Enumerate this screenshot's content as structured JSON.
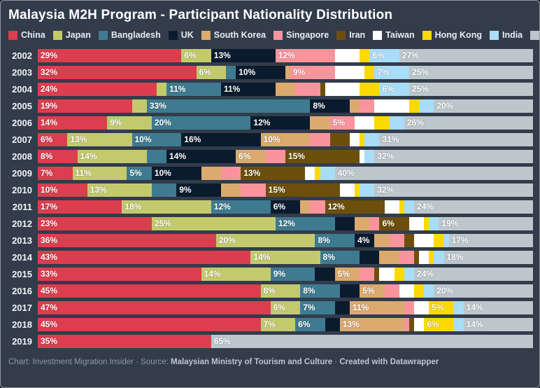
{
  "title": "Malaysia M2H Program - Participant Nationality Distribution",
  "footer": {
    "part1": "Chart: Investment Migration Insider · Source: ",
    "source": "Malaysian Ministry of Tourism and Culture",
    "sep": " · ",
    "credit": "Created with Datawrapper"
  },
  "colors": {
    "background": "#323c4b",
    "title_text": "#ffffff",
    "year_text": "#f2f4f6",
    "footer_text": "#8d98a4"
  },
  "chart_data": {
    "type": "bar",
    "stacked": true,
    "orientation": "horizontal",
    "unit": "%",
    "xlim": [
      0,
      100
    ],
    "grid": false,
    "legend_position": "top",
    "title": "Malaysia M2H Program - Participant Nationality Distribution",
    "series": [
      {
        "name": "China",
        "color": "#dc3e4f"
      },
      {
        "name": "Japan",
        "color": "#c3ca6c"
      },
      {
        "name": "Bangladesh",
        "color": "#3e7b90"
      },
      {
        "name": "UK",
        "color": "#0b1b2e"
      },
      {
        "name": "South Korea",
        "color": "#dcaa6e"
      },
      {
        "name": "Singapore",
        "color": "#f9949c"
      },
      {
        "name": "Iran",
        "color": "#6d4f0d"
      },
      {
        "name": "Taiwan",
        "color": "#ffffff"
      },
      {
        "name": "Hong Kong",
        "color": "#fcd900"
      },
      {
        "name": "India",
        "color": "#a8dcf7"
      },
      {
        "name": "Others",
        "color": "#bcc7cc"
      }
    ],
    "categories": [
      "2002",
      "2003",
      "2004",
      "2005",
      "2006",
      "2007",
      "2008",
      "2009",
      "2010",
      "2011",
      "2012",
      "2013",
      "2014",
      "2015",
      "2016",
      "2017",
      "2018",
      "2019"
    ],
    "rows": [
      {
        "year": "2002",
        "values": [
          29,
          6,
          0,
          13,
          0,
          12,
          0,
          5,
          2,
          6,
          27
        ],
        "labels": [
          "29%",
          "6%",
          "",
          "13%",
          "",
          "12%",
          "",
          "",
          "",
          "6%",
          "27%"
        ]
      },
      {
        "year": "2003",
        "values": [
          32,
          6,
          2,
          10,
          1,
          9,
          0,
          6,
          2,
          7,
          25
        ],
        "labels": [
          "32%",
          "6%",
          "",
          "10%",
          "",
          "9%",
          "",
          "",
          "",
          "7%",
          "25%"
        ]
      },
      {
        "year": "2004",
        "values": [
          24,
          2,
          11,
          11,
          4,
          5,
          1,
          7,
          4,
          6,
          25
        ],
        "labels": [
          "24%",
          "",
          "11%",
          "11%",
          "",
          "",
          "",
          "",
          "",
          "6%",
          "25%"
        ]
      },
      {
        "year": "2005",
        "values": [
          19,
          3,
          33,
          8,
          2,
          3,
          0,
          7,
          2,
          3,
          20
        ],
        "labels": [
          "19%",
          "",
          "33%",
          "8%",
          "",
          "",
          "",
          "",
          "",
          "",
          "20%"
        ]
      },
      {
        "year": "2006",
        "values": [
          14,
          9,
          20,
          12,
          4,
          5,
          0,
          4,
          3,
          3,
          26
        ],
        "labels": [
          "14%",
          "9%",
          "20%",
          "12%",
          "",
          "5%",
          "",
          "",
          "",
          "",
          "26%"
        ]
      },
      {
        "year": "2007",
        "values": [
          6,
          13,
          10,
          16,
          10,
          4,
          4,
          2,
          1,
          3,
          31
        ],
        "labels": [
          "6%",
          "13%",
          "10%",
          "16%",
          "10%",
          "",
          "",
          "",
          "",
          "",
          "31%"
        ]
      },
      {
        "year": "2008",
        "values": [
          8,
          14,
          4,
          14,
          6,
          4,
          15,
          1,
          0,
          2,
          32
        ],
        "labels": [
          "8%",
          "14%",
          "",
          "14%",
          "6%",
          "",
          "15%",
          "",
          "",
          "",
          "32%"
        ]
      },
      {
        "year": "2009",
        "values": [
          7,
          11,
          5,
          10,
          4,
          4,
          13,
          2,
          1,
          3,
          40
        ],
        "labels": [
          "7%",
          "11%",
          "5%",
          "10%",
          "",
          "",
          "13%",
          "",
          "",
          "",
          "40%"
        ]
      },
      {
        "year": "2010",
        "values": [
          10,
          13,
          5,
          9,
          4,
          5,
          15,
          3,
          1,
          3,
          32
        ],
        "labels": [
          "10%",
          "13%",
          "",
          "9%",
          "",
          "",
          "15%",
          "",
          "",
          "",
          "32%"
        ]
      },
      {
        "year": "2011",
        "values": [
          17,
          18,
          12,
          6,
          2,
          3,
          12,
          3,
          1,
          2,
          24
        ],
        "labels": [
          "17%",
          "18%",
          "12%",
          "6%",
          "",
          "",
          "12%",
          "",
          "",
          "",
          "24%"
        ]
      },
      {
        "year": "2012",
        "values": [
          23,
          25,
          12,
          4,
          3,
          2,
          6,
          3,
          1,
          2,
          19
        ],
        "labels": [
          "23%",
          "25%",
          "12%",
          "",
          "",
          "",
          "6%",
          "",
          "",
          "",
          "19%"
        ]
      },
      {
        "year": "2013",
        "values": [
          36,
          20,
          8,
          4,
          3,
          3,
          2,
          4,
          2,
          1,
          17
        ],
        "labels": [
          "36%",
          "20%",
          "8%",
          "4%",
          "",
          "",
          "",
          "",
          "",
          "",
          "17%"
        ]
      },
      {
        "year": "2014",
        "values": [
          43,
          14,
          8,
          4,
          4,
          3,
          1,
          2,
          1,
          2,
          18
        ],
        "labels": [
          "43%",
          "14%",
          "8%",
          "",
          "",
          "",
          "",
          "",
          "",
          "",
          "18%"
        ]
      },
      {
        "year": "2015",
        "values": [
          33,
          14,
          9,
          4,
          5,
          3,
          1,
          3,
          2,
          2,
          24
        ],
        "labels": [
          "33%",
          "14%",
          "9%",
          "",
          "5%",
          "",
          "",
          "",
          "",
          "",
          "24%"
        ]
      },
      {
        "year": "2016",
        "values": [
          45,
          8,
          8,
          4,
          5,
          3,
          0,
          3,
          2,
          2,
          20
        ],
        "labels": [
          "45%",
          "8%",
          "8%",
          "",
          "5%",
          "",
          "",
          "",
          "",
          "",
          "20%"
        ]
      },
      {
        "year": "2017",
        "values": [
          47,
          6,
          7,
          3,
          11,
          2,
          0,
          3,
          5,
          2,
          14
        ],
        "labels": [
          "47%",
          "6%",
          "7%",
          "",
          "11%",
          "",
          "",
          "",
          "5%",
          "",
          "14%"
        ]
      },
      {
        "year": "2018",
        "values": [
          45,
          7,
          6,
          3,
          13,
          1,
          1,
          2,
          6,
          2,
          14
        ],
        "labels": [
          "45%",
          "7%",
          "6%",
          "",
          "13%",
          "",
          "",
          "",
          "6%",
          "",
          "14%"
        ]
      },
      {
        "year": "2019",
        "values": [
          35,
          0,
          0,
          0,
          0,
          0,
          0,
          0,
          0,
          0,
          65
        ],
        "labels": [
          "35%",
          "",
          "",
          "",
          "",
          "",
          "",
          "",
          "",
          "",
          "65%"
        ]
      }
    ]
  }
}
